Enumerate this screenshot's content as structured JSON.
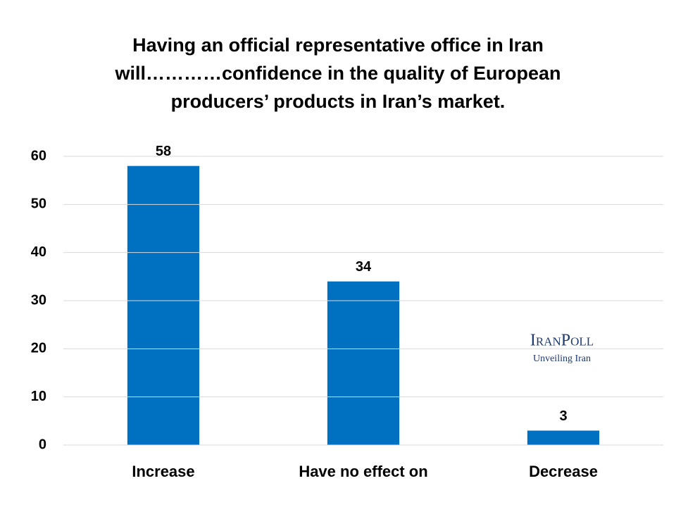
{
  "chart_data": {
    "type": "bar",
    "title": "Having an official representative office in Iran will…………confidence in the quality of European producers’ products in Iran’s market.",
    "categories": [
      "Increase",
      "Have no effect on",
      "Decrease"
    ],
    "values": [
      58,
      34,
      3
    ],
    "color": "#0070c0",
    "ylim": [
      0,
      60
    ],
    "yticks": [
      0,
      10,
      20,
      30,
      40,
      50,
      60
    ],
    "grid": true,
    "watermark": {
      "name": "IranPoll",
      "tagline": "Unveiling Iran"
    }
  }
}
